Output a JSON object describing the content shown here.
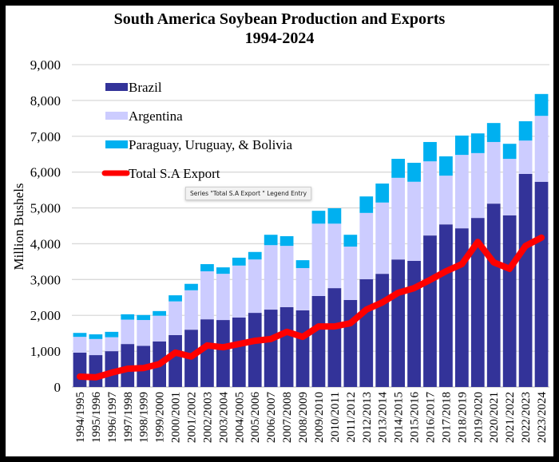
{
  "tooltip": "Series \"Total S.A Export \" Legend Entry",
  "chart_data": {
    "type": "bar",
    "subtype": "stacked-bar-with-line",
    "title": "South America Soybean Production and Exports",
    "subtitle": "1994-2024",
    "xlabel": "",
    "ylabel": "Million Bushels",
    "ylim": [
      0,
      9000
    ],
    "yticks": [
      0,
      1000,
      2000,
      3000,
      4000,
      5000,
      6000,
      7000,
      8000,
      9000
    ],
    "ytick_labels": [
      "0",
      "1,000",
      "2,000",
      "3,000",
      "4,000",
      "5,000",
      "6,000",
      "7,000",
      "8,000",
      "9,000"
    ],
    "grid": true,
    "legend_position": "top-left",
    "categories": [
      "1994/1995",
      "1995/1996",
      "1996/1997",
      "1997/1998",
      "1998/1999",
      "1999/2000",
      "2000/2001",
      "2001/2002",
      "2002/2003",
      "2003/2004",
      "2004/2005",
      "2005/2006",
      "2006/2007",
      "2007/2008",
      "2008/2009",
      "2009/2010",
      "2010/2011",
      "2011/2012",
      "2012/2013",
      "2013/2014",
      "2014/2015",
      "2015/2016",
      "2016/2017",
      "2017/2018",
      "2018/2019",
      "2019/2020",
      "2020/2021",
      "2021/2022",
      "2022/2023",
      "2023/2024"
    ],
    "series": [
      {
        "name": "Brazil",
        "type": "bar",
        "color": "#333399",
        "values": [
          960,
          890,
          1000,
          1200,
          1150,
          1270,
          1450,
          1600,
          1890,
          1870,
          1940,
          2070,
          2160,
          2230,
          2140,
          2540,
          2760,
          2430,
          3010,
          3160,
          3560,
          3520,
          4230,
          4540,
          4430,
          4720,
          5120,
          4790,
          5950,
          5730
        ]
      },
      {
        "name": "Argentina",
        "type": "bar",
        "color": "#ccccff",
        "values": [
          440,
          450,
          390,
          680,
          720,
          720,
          940,
          1100,
          1340,
          1290,
          1450,
          1490,
          1800,
          1710,
          1180,
          2020,
          1800,
          1490,
          1850,
          1990,
          2280,
          2210,
          2070,
          1360,
          2050,
          1810,
          1720,
          1580,
          930,
          1840
        ]
      },
      {
        "name": "Paraguay, Uruguay, & Bolivia",
        "type": "bar",
        "color": "#00b0f0",
        "values": [
          110,
          130,
          150,
          150,
          140,
          130,
          170,
          180,
          200,
          180,
          220,
          210,
          290,
          270,
          220,
          360,
          430,
          330,
          460,
          530,
          530,
          530,
          540,
          540,
          540,
          550,
          530,
          420,
          540,
          610
        ]
      },
      {
        "name": "Total S.A Export",
        "type": "line",
        "color": "#ff0000",
        "values": [
          290,
          270,
          400,
          510,
          530,
          640,
          960,
          850,
          1160,
          1110,
          1200,
          1290,
          1340,
          1540,
          1400,
          1690,
          1690,
          1780,
          2160,
          2360,
          2630,
          2760,
          2990,
          3230,
          3430,
          4050,
          3480,
          3300,
          3940,
          4170
        ]
      }
    ]
  }
}
